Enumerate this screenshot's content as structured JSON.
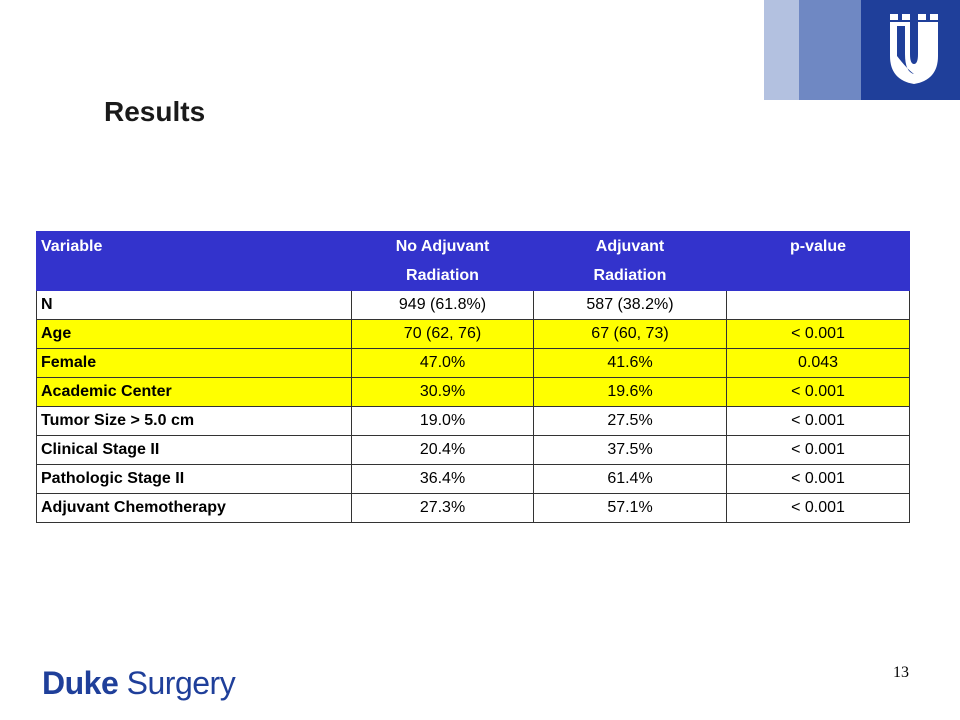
{
  "title": "Results",
  "table": {
    "headers": [
      "Variable",
      "No Adjuvant\nRadiation",
      "Adjuvant\nRadiation",
      "p-value"
    ],
    "rows": [
      {
        "label": "N",
        "no_adj": "949 (61.8%)",
        "adj": "587 (38.2%)",
        "p": "",
        "highlight": false
      },
      {
        "label": "Age",
        "no_adj": "70 (62, 76)",
        "adj": "67 (60, 73)",
        "p": "< 0.001",
        "highlight": true
      },
      {
        "label": "Female",
        "no_adj": "47.0%",
        "adj": "41.6%",
        "p": "0.043",
        "highlight": true
      },
      {
        "label": "Academic Center",
        "no_adj": "30.9%",
        "adj": "19.6%",
        "p": "< 0.001",
        "highlight": true
      },
      {
        "label": "Tumor Size > 5.0 cm",
        "no_adj": "19.0%",
        "adj": "27.5%",
        "p": "< 0.001",
        "highlight": false
      },
      {
        "label": "Clinical Stage II",
        "no_adj": "20.4%",
        "adj": "37.5%",
        "p": "< 0.001",
        "highlight": false
      },
      {
        "label": "Pathologic Stage II",
        "no_adj": "36.4%",
        "adj": "61.4%",
        "p": "< 0.001",
        "highlight": false
      },
      {
        "label": "Adjuvant Chemotherapy",
        "no_adj": "27.3%",
        "adj": "57.1%",
        "p": "< 0.001",
        "highlight": false
      }
    ]
  },
  "footer": {
    "logo_strong": "Duke",
    "logo_light": "Surgery",
    "page_number": "13"
  },
  "colors": {
    "header_bg": "#3333cc",
    "highlight": "#ffff00",
    "brand_blue": "#1f3f9a"
  },
  "icons": {
    "corner_logo": "duke-shield-logo-icon"
  }
}
